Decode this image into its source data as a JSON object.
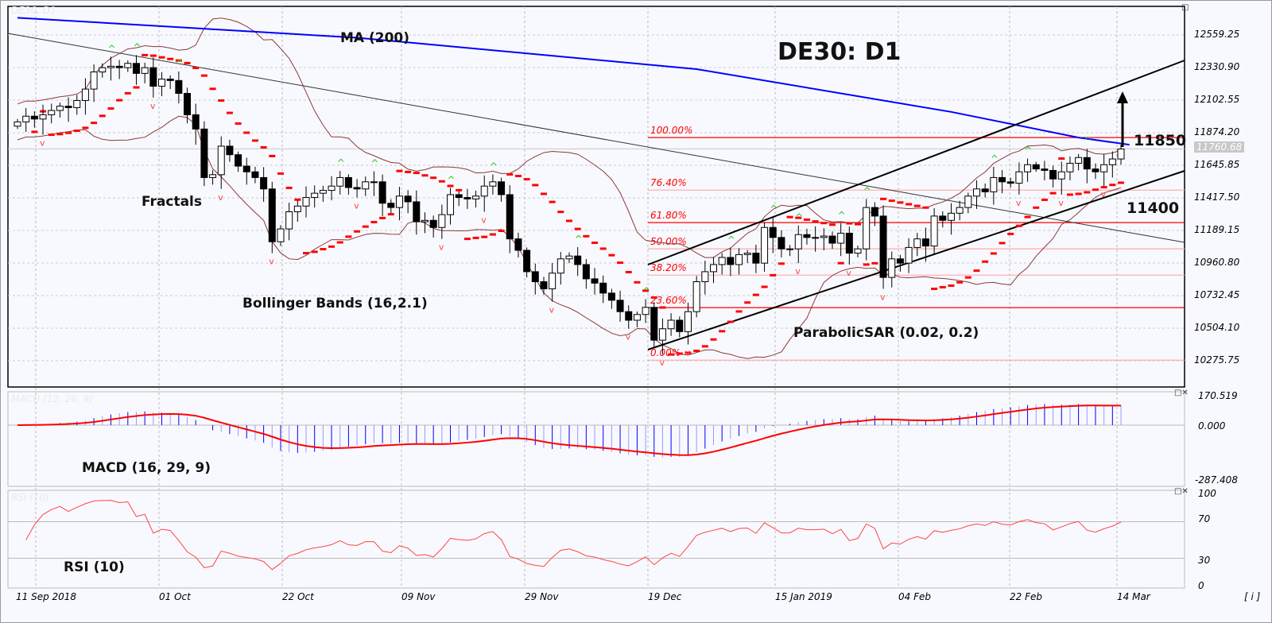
{
  "chart_data": {
    "type": "candlestick",
    "title": "DE30: D1",
    "faint_title": "DE30, D1",
    "price_ticks": [
      "12559.25",
      "12330.90",
      "12102.55",
      "11874.20",
      "11645.85",
      "11417.50",
      "11189.15",
      "10960.80",
      "10732.45",
      "10504.10",
      "10275.75"
    ],
    "price_range": [
      10050,
      12740
    ],
    "current_price": "11760.68",
    "date_ticks": [
      "11 Sep 2018",
      "01 Oct",
      "22 Oct",
      "09 Nov",
      "29 Nov",
      "19 Dec",
      "15 Jan 2019",
      "04 Feb",
      "22 Feb",
      "14 Mar"
    ],
    "closes": [
      11950,
      11990,
      11970,
      12000,
      12030,
      12060,
      12050,
      12100,
      12180,
      12300,
      12330,
      12340,
      12330,
      12360,
      12290,
      12330,
      12200,
      12250,
      12240,
      12150,
      12000,
      11900,
      11560,
      11580,
      11780,
      11720,
      11640,
      11600,
      11560,
      11480,
      11110,
      11200,
      11320,
      11360,
      11420,
      11450,
      11470,
      11500,
      11560,
      11490,
      11480,
      11530,
      11530,
      11380,
      11350,
      11430,
      11390,
      11250,
      11260,
      11210,
      11300,
      11440,
      11420,
      11410,
      11430,
      11500,
      11530,
      11440,
      11130,
      11050,
      10900,
      10830,
      10780,
      10890,
      10990,
      11010,
      10950,
      10850,
      10820,
      10750,
      10700,
      10620,
      10560,
      10600,
      10650,
      10420,
      10500,
      10560,
      10480,
      10620,
      10830,
      10900,
      10950,
      11000,
      10950,
      11020,
      11030,
      10960,
      11210,
      11140,
      11060,
      11060,
      11160,
      11140,
      11140,
      11150,
      11100,
      11170,
      11030,
      11060,
      11350,
      11290,
      10860,
      10990,
      10960,
      11070,
      11130,
      11080,
      11290,
      11260,
      11310,
      11350,
      11430,
      11480,
      11460,
      11560,
      11530,
      11520,
      11600,
      11650,
      11620,
      11610,
      11550,
      11600,
      11660,
      11700,
      11620,
      11600,
      11650,
      11690,
      11760
    ],
    "ma200": [
      [
        0,
        12680
      ],
      [
        40,
        12540
      ],
      [
        80,
        12320
      ],
      [
        110,
        12020
      ],
      [
        125,
        11840
      ],
      [
        131,
        11790
      ]
    ],
    "fibonacci": {
      "low": 10280,
      "high": 11840,
      "levels": [
        "100.00%",
        "76.40%",
        "61.80%",
        "50.00%",
        "38.20%",
        "23.60%",
        "0.00%"
      ],
      "ratios": [
        1,
        0.764,
        0.618,
        0.5,
        0.382,
        0.236,
        0
      ]
    },
    "annotations": {
      "ma": "MA (200)",
      "fractals": "Fractals",
      "bollinger": "Bollinger Bands (16,2.1)",
      "sar": "ParabolicSAR (0.02, 0.2)",
      "target_up": "11850",
      "support": "11400"
    },
    "macd": {
      "label": "MACD (16, 29, 9)",
      "faint_label": "MACD (12, 26, 9)",
      "ticks": [
        "170.519",
        "0.000",
        "-287.408"
      ],
      "range": [
        -287.408,
        170.519
      ]
    },
    "rsi": {
      "label": "RSI (10)",
      "faint_label": "RSI (10)",
      "ticks": [
        "100",
        "70",
        "30",
        "0"
      ]
    },
    "colors": {
      "ma": "#0000ff",
      "sar": "#ff0000",
      "fib_strong": "#ff0000",
      "fib_light": "#ffb0b0",
      "bands": "#8b3a3a",
      "up_fractal": "#22cc22",
      "down_fractal": "#ff4444",
      "macd_hist": "#0000ff",
      "signal": "#ff0000"
    }
  },
  "info_button": "[ i ]"
}
